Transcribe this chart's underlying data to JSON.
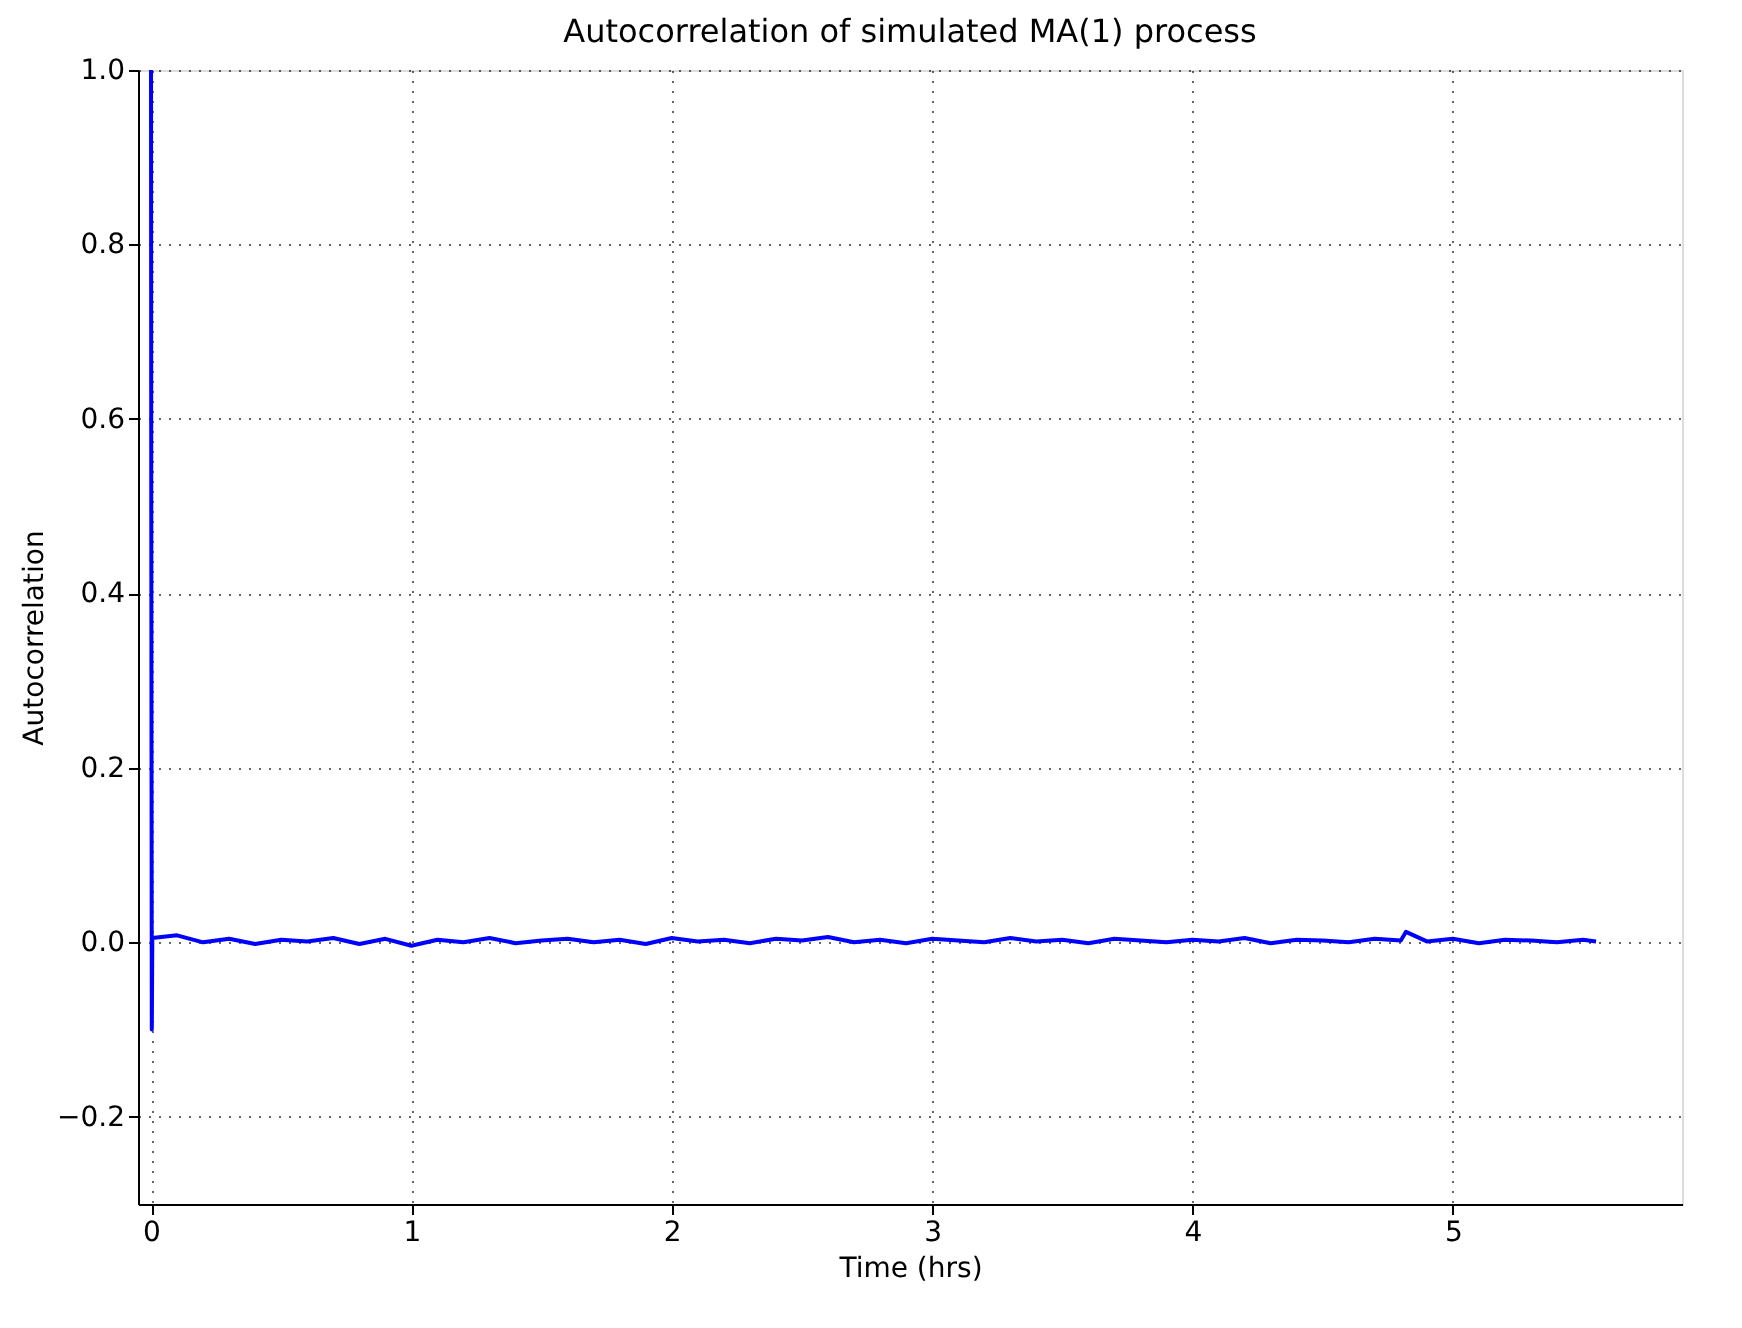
{
  "chart_data": {
    "type": "line",
    "title": "Autocorrelation of simulated MA(1) process",
    "xlabel": "Time (hrs)",
    "ylabel": "Autocorrelation",
    "x": [
      0,
      0.001,
      0.003,
      0.005,
      0.1,
      0.2,
      0.3,
      0.4,
      0.5,
      0.6,
      0.7,
      0.8,
      0.9,
      1.0,
      1.1,
      1.2,
      1.3,
      1.4,
      1.5,
      1.6,
      1.7,
      1.8,
      1.9,
      2.0,
      2.1,
      2.2,
      2.3,
      2.4,
      2.5,
      2.6,
      2.7,
      2.8,
      2.9,
      3.0,
      3.1,
      3.2,
      3.3,
      3.4,
      3.5,
      3.6,
      3.7,
      3.8,
      3.9,
      4.0,
      4.1,
      4.2,
      4.3,
      4.4,
      4.5,
      4.6,
      4.7,
      4.8,
      4.82,
      4.9,
      5.0,
      5.1,
      5.2,
      5.3,
      5.4,
      5.5,
      5.55
    ],
    "series": [
      {
        "color": "#0000ff",
        "values": [
          1.0,
          0.5,
          -0.1,
          0.005,
          0.008,
          0.0,
          0.004,
          -0.002,
          0.003,
          0.001,
          0.005,
          -0.002,
          0.004,
          -0.004,
          0.003,
          0.0,
          0.005,
          -0.001,
          0.002,
          0.004,
          0.0,
          0.003,
          -0.002,
          0.005,
          0.001,
          0.003,
          -0.001,
          0.004,
          0.002,
          0.006,
          0.0,
          0.003,
          -0.001,
          0.004,
          0.002,
          0.0,
          0.005,
          0.001,
          0.003,
          -0.001,
          0.004,
          0.002,
          0.0,
          0.003,
          0.001,
          0.005,
          -0.001,
          0.003,
          0.002,
          0.0,
          0.004,
          0.002,
          0.012,
          0.001,
          0.004,
          -0.001,
          0.003,
          0.002,
          0.0,
          0.003,
          0.001
        ]
      }
    ],
    "xlim": [
      -0.05,
      5.88
    ],
    "ylim": [
      -0.3,
      1.0
    ],
    "xticks": [
      0,
      1,
      2,
      3,
      4,
      5
    ],
    "yticks": [
      {
        "value": -0.2,
        "label": "−0.2"
      },
      {
        "value": 0.0,
        "label": "0.0"
      },
      {
        "value": 0.2,
        "label": "0.2"
      },
      {
        "value": 0.4,
        "label": "0.4"
      },
      {
        "value": 0.6,
        "label": "0.6"
      },
      {
        "value": 0.8,
        "label": "0.8"
      },
      {
        "value": 1.0,
        "label": "1.0"
      }
    ],
    "grid": true,
    "line_style": "solid"
  }
}
